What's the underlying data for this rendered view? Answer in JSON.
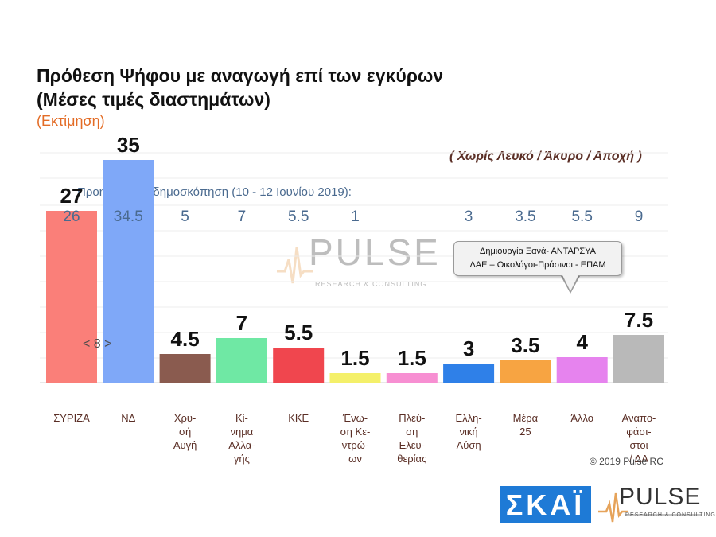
{
  "title_line1": "Πρόθεση Ψήφου με αναγωγή επί των εγκύρων",
  "title_line2": "(Μέσες τιμές διαστημάτων)",
  "estimate": "(Εκτίμηση)",
  "note": "( Χωρίς Λευκό / Άκυρο / Αποχή )",
  "previous_poll_label": "Προηγούμενη δημοσκόπηση (10 - 12 Ιουνίου 2019):",
  "callout_line1": "Δημιουργία Ξανά- ΑΝΤΑΡΣΥΑ",
  "callout_line2": "ΛΑΕ – Οικολόγοι-Πράσινοι - ΕΠΑΜ",
  "watermark": "PULSE",
  "watermark_sub": "RESEARCH & CONSULTING",
  "nav_indicator": "< 8 >",
  "copyright": "© 2019 Pulse RC",
  "logo_skai": "ΣΚΑΪ",
  "logo_pulse": "PULSE",
  "logo_pulse_sub": "RESEARCH & CONSULTING",
  "colors": {
    "estimate": "#e36c26",
    "previous": "#4a6a8f"
  },
  "chart_data": {
    "type": "bar",
    "categories": [
      [
        "ΣΥΡΙΖΑ"
      ],
      [
        "ΝΔ"
      ],
      [
        "Χρυ-",
        "σή",
        "Αυγή"
      ],
      [
        "Κί-",
        "νημα",
        "Αλλα-",
        "γής"
      ],
      [
        "ΚΚΕ"
      ],
      [
        "Ένω-",
        "ση Κε-",
        "ντρώ-",
        "ων"
      ],
      [
        "Πλεύ-",
        "ση",
        "Ελευ-",
        "θερίας"
      ],
      [
        "Ελλη-",
        "νική",
        "Λύση"
      ],
      [
        "Μέρα",
        "25"
      ],
      [
        "Άλλο"
      ],
      [
        "Αναπο-",
        "φάσι-",
        "στοι",
        "/ ΔΑ"
      ]
    ],
    "values": [
      27,
      35,
      4.5,
      7,
      5.5,
      1.5,
      1.5,
      3,
      3.5,
      4,
      7.5
    ],
    "value_labels": [
      "27",
      "35",
      "4.5",
      "7",
      "5.5",
      "1.5",
      "1.5",
      "3",
      "3.5",
      "4",
      "7.5"
    ],
    "previous_values": [
      "26",
      "34.5",
      "5",
      "7",
      "5.5",
      "1",
      "",
      "3",
      "3.5",
      "5.5",
      "9"
    ],
    "colors": [
      "#fa7f79",
      "#7fa8f8",
      "#8a5b4f",
      "#6fe8a4",
      "#f0464e",
      "#f4f06a",
      "#f78fd2",
      "#2f80e8",
      "#f7a442",
      "#e683ee",
      "#b9b9b9"
    ],
    "ylim": [
      0,
      40
    ],
    "grid": true
  }
}
